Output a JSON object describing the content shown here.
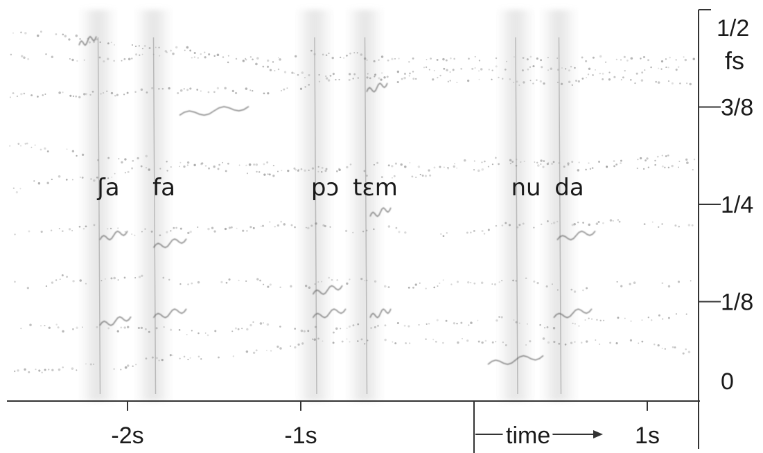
{
  "chart_data": {
    "type": "heatmap",
    "title": "",
    "xlabel": "time",
    "ylabel": "",
    "xlim": [
      -2.7,
      1.3
    ],
    "ylim": [
      0,
      0.5
    ],
    "x_ticks": [
      {
        "value": -2,
        "label": "-2s"
      },
      {
        "value": -1,
        "label": "-1s"
      },
      {
        "value": 1,
        "label": "1s"
      }
    ],
    "y_ticks": [
      {
        "value": 0,
        "label": "0"
      },
      {
        "value": 0.125,
        "label": "1/8"
      },
      {
        "value": 0.25,
        "label": "1/4"
      },
      {
        "value": 0.375,
        "label": "3/8"
      },
      {
        "value": 0.5,
        "label": "1/2"
      }
    ],
    "y_unit": "fs",
    "time_arrow_label": "time",
    "syllables": [
      {
        "label": "ʃa",
        "time": -2.11
      },
      {
        "label": "fa",
        "time": -1.79
      },
      {
        "label": "pɔ",
        "time": -0.86
      },
      {
        "label": "tɛm",
        "time": -0.57
      },
      {
        "label": "nu",
        "time": 0.3
      },
      {
        "label": "da",
        "time": 0.55
      }
    ],
    "grid": false,
    "legend": "none"
  }
}
